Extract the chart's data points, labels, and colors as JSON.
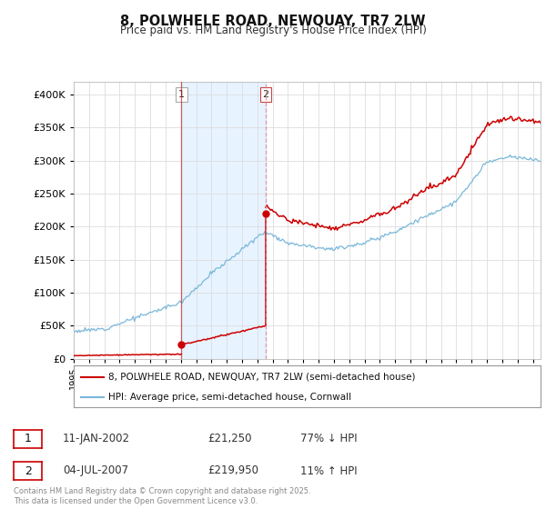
{
  "title": "8, POLWHELE ROAD, NEWQUAY, TR7 2LW",
  "subtitle": "Price paid vs. HM Land Registry's House Price Index (HPI)",
  "legend_line1": "8, POLWHELE ROAD, NEWQUAY, TR7 2LW (semi-detached house)",
  "legend_line2": "HPI: Average price, semi-detached house, Cornwall",
  "footer": "Contains HM Land Registry data © Crown copyright and database right 2025.\nThis data is licensed under the Open Government Licence v3.0.",
  "transaction1_date": "11-JAN-2002",
  "transaction1_price": "£21,250",
  "transaction1_hpi": "77% ↓ HPI",
  "transaction2_date": "04-JUL-2007",
  "transaction2_price": "£219,950",
  "transaction2_hpi": "11% ↑ HPI",
  "hpi_color": "#7ab8d9",
  "price_color": "#cc0000",
  "vline1_color": "#cc2222",
  "vline2_color": "#e08090",
  "shade_color": "#ddeeff",
  "marker_color": "#cc0000",
  "ylim": [
    0,
    420000
  ],
  "yticks": [
    0,
    50000,
    100000,
    150000,
    200000,
    250000,
    300000,
    350000,
    400000
  ],
  "background_color": "#ffffff",
  "grid_color": "#dddddd",
  "t1": 2002.04,
  "p1": 21250,
  "t2": 2007.54,
  "p2": 219950
}
